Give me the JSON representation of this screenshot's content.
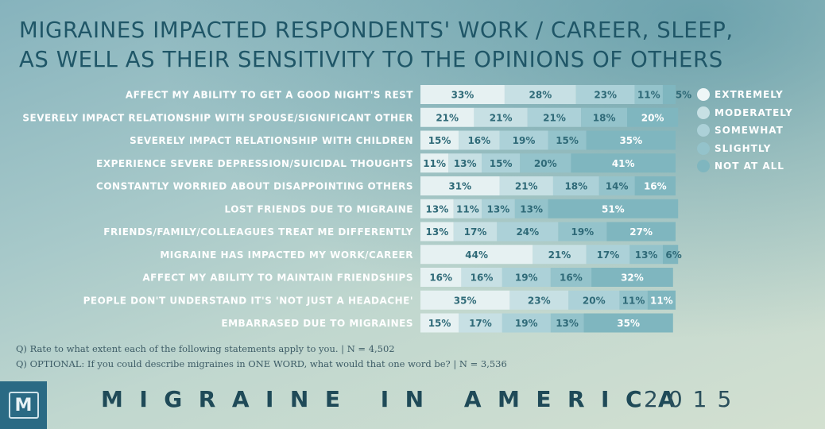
{
  "title": {
    "line1": "MIGRAINES IMPACTED RESPONDENTS' WORK / CAREER, SLEEP,",
    "line2": "AS WELL AS THEIR SENSITIVITY TO THE OPINIONS OF OTHERS"
  },
  "colors": {
    "extremely": "#e6f1f2",
    "moderately": "#c7e0e4",
    "somewhat": "#acd1d8",
    "slightly": "#94c3cb",
    "not_at_all": "#7fb6bf",
    "label_text": "#ffffff",
    "value_text": "#2f6a78"
  },
  "legend": [
    {
      "key": "extremely",
      "label": "EXTREMELY",
      "color": "#eef6f7"
    },
    {
      "key": "moderately",
      "label": "MODERATELY",
      "color": "#c7e0e4"
    },
    {
      "key": "somewhat",
      "label": "SOMEWHAT",
      "color": "#acd1d8"
    },
    {
      "key": "slightly",
      "label": "SLIGHTLY",
      "color": "#94c3cb"
    },
    {
      "key": "not_at_all",
      "label": "NOT AT ALL",
      "color": "#7fb6bf"
    }
  ],
  "chart_data": {
    "type": "bar",
    "orientation": "horizontal",
    "stacked": true,
    "title": "MIGRAINES IMPACTED RESPONDENTS' WORK / CAREER, SLEEP, AS WELL AS THEIR SENSITIVITY TO THE OPINIONS OF OTHERS",
    "xlim": [
      0,
      100
    ],
    "legend_position": "right",
    "categories": [
      "AFFECT MY ABILITY TO GET A GOOD NIGHT'S REST",
      "SEVERELY IMPACT RELATIONSHIP WITH SPOUSE/SIGNIFICANT OTHER",
      "SEVERELY IMPACT RELATIONSHIP WITH CHILDREN",
      "EXPERIENCE SEVERE DEPRESSION/SUICIDAL THOUGHTS",
      "CONSTANTLY WORRIED ABOUT DISAPPOINTING OTHERS",
      "LOST FRIENDS DUE TO MIGRAINE",
      "FRIENDS/FAMILY/COLLEAGUES TREAT ME DIFFERENTLY",
      "MIGRAINE HAS IMPACTED MY WORK/CAREER",
      "AFFECT MY ABILITY TO MAINTAIN FRIENDSHIPS",
      "PEOPLE DON'T UNDERSTAND IT'S 'NOT JUST A HEADACHE'",
      "EMBARRASED DUE TO MIGRAINES"
    ],
    "series": [
      {
        "name": "EXTREMELY",
        "values": [
          33,
          21,
          15,
          11,
          31,
          13,
          13,
          44,
          16,
          35,
          15
        ]
      },
      {
        "name": "MODERATELY",
        "values": [
          28,
          21,
          16,
          13,
          21,
          11,
          17,
          21,
          16,
          23,
          17
        ]
      },
      {
        "name": "SOMEWHAT",
        "values": [
          23,
          21,
          19,
          15,
          18,
          13,
          24,
          17,
          19,
          20,
          19
        ]
      },
      {
        "name": "SLIGHTLY",
        "values": [
          11,
          18,
          15,
          20,
          14,
          13,
          19,
          13,
          16,
          11,
          13
        ]
      },
      {
        "name": "NOT AT ALL",
        "values": [
          5,
          20,
          35,
          41,
          16,
          51,
          27,
          6,
          32,
          11,
          35
        ]
      }
    ],
    "value_labels": [
      [
        "33%",
        "28%",
        "23%",
        "11%",
        "5%"
      ],
      [
        "21%",
        "21%",
        "21%",
        "18%",
        "20%"
      ],
      [
        "15%",
        "16%",
        "19%",
        "15%",
        "35%"
      ],
      [
        "11%",
        "13%",
        "15%",
        "20%",
        "41%"
      ],
      [
        "31%",
        "21%",
        "18%",
        "14%",
        "16%"
      ],
      [
        "13%",
        "11%",
        "13%",
        "13%",
        "51%"
      ],
      [
        "13%",
        "17%",
        "24%",
        "19%",
        "27%"
      ],
      [
        "44%",
        "21%",
        "17%",
        "13%",
        "6%"
      ],
      [
        "16%",
        "16%",
        "19%",
        "16%",
        "32%"
      ],
      [
        "35%",
        "23%",
        "20%",
        "11%",
        "11%"
      ],
      [
        "15%",
        "17%",
        "19%",
        "13%",
        "35%"
      ]
    ]
  },
  "footnotes": {
    "q1": "Q) Rate to what extent each of the following statements apply to you. | N = 4,502",
    "q2": "Q) OPTIONAL: If you could describe migraines in ONE WORD, what would that one word be? | N = 3,536"
  },
  "brand": {
    "logo_letter": "M",
    "name": "MIGRAINE IN AMERICA",
    "year": "2015"
  }
}
